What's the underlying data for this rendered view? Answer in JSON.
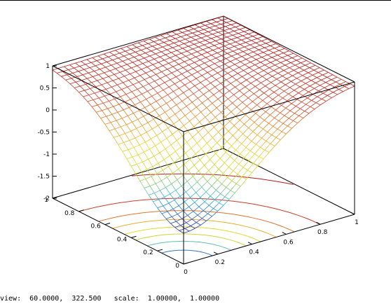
{
  "chart_data": {
    "type": "surface3d",
    "title": "",
    "xlabel": "",
    "ylabel": "",
    "zlabel": "",
    "xlim": [
      0,
      1
    ],
    "ylim": [
      0,
      1
    ],
    "zlim": [
      -2,
      1
    ],
    "x_ticks": [
      "0",
      "0.2",
      "0.4",
      "0.6",
      "0.8",
      "1"
    ],
    "y_ticks": [
      "0",
      "0.2",
      "0.4",
      "0.6",
      "0.8",
      "1"
    ],
    "z_ticks": [
      "1",
      "0.5",
      "0",
      "-0.5",
      "-1",
      "-1.5",
      "-2"
    ],
    "surface": {
      "style": "mesh",
      "grid_size": 30,
      "min_point": {
        "x": 0,
        "y": 0,
        "z": -1.3
      },
      "corner_z": 1.0,
      "colormap": [
        "#2e2ea8",
        "#2fb8e0",
        "#c6d837",
        "#ead82a",
        "#e89a2d",
        "#d2472f",
        "#b01818"
      ]
    },
    "contours": {
      "z_base": -2,
      "z_levels": [
        -1.1,
        -0.8,
        -0.5,
        -0.2,
        0.1,
        0.4,
        0.7,
        0.95
      ]
    },
    "grid": false,
    "legend": "none"
  },
  "status": {
    "view_label": "view:",
    "view_values": "60.0000,  322.500",
    "scale_label": "scale:",
    "scale_values": "1.00000,  1.00000"
  }
}
